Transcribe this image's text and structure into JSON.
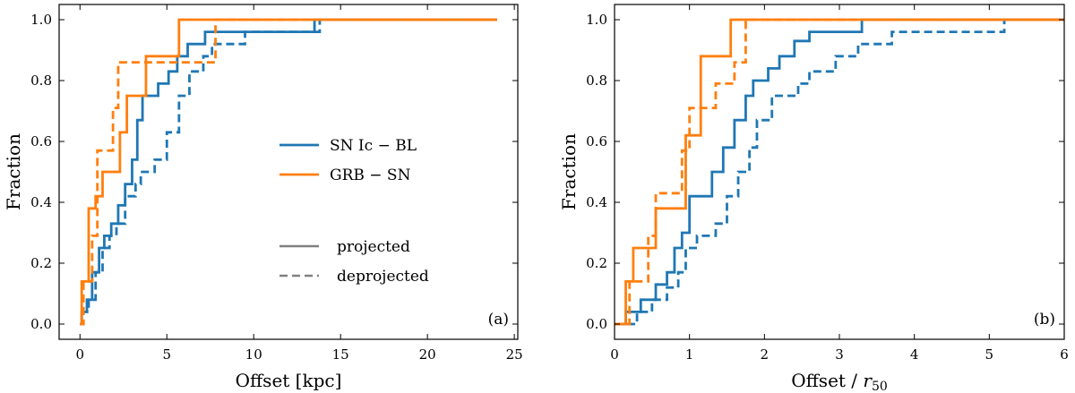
{
  "colors": {
    "sn": "#1f77b4",
    "grb": "#ff7f0e",
    "legend_gray": "#808080"
  },
  "legend": {
    "series": [
      "SN Ic − BL",
      "GRB − SN"
    ],
    "styles": [
      "projected",
      "deprojected"
    ]
  },
  "chart_data": [
    {
      "type": "line",
      "step": "post",
      "panel_label": "(a)",
      "xlabel": "Offset [kpc]",
      "ylabel": "Fraction",
      "xlim": [
        -1.2,
        25.2
      ],
      "ylim": [
        -0.05,
        1.05
      ],
      "xticks": [
        0,
        5,
        10,
        15,
        20,
        25
      ],
      "yticks": [
        0.0,
        0.2,
        0.4,
        0.6,
        0.8,
        1.0
      ],
      "xtick_labels": [
        "0",
        "5",
        "10",
        "15",
        "20",
        "25"
      ],
      "ytick_labels": [
        "0.0",
        "0.2",
        "0.4",
        "0.6",
        "0.8",
        "1.0"
      ],
      "x_end": 24,
      "series": [
        {
          "name": "SN Ic − BL",
          "color": "sn",
          "dash": "projected",
          "x": [
            0.1,
            0.4,
            0.7,
            1.1,
            1.4,
            1.8,
            2.2,
            2.6,
            3.0,
            3.3,
            3.6,
            4.5,
            5.1,
            5.6,
            6.2,
            7.2,
            8.5,
            13.5
          ],
          "y": [
            0.04,
            0.08,
            0.17,
            0.25,
            0.29,
            0.33,
            0.39,
            0.46,
            0.54,
            0.67,
            0.75,
            0.79,
            0.83,
            0.88,
            0.92,
            0.96,
            0.96,
            1.0
          ]
        },
        {
          "name": "SN Ic − BL",
          "color": "sn",
          "dash": "deprojected",
          "x": [
            0.2,
            0.5,
            0.9,
            1.3,
            1.7,
            2.1,
            2.6,
            3.2,
            3.5,
            4.3,
            5.0,
            5.7,
            6.3,
            7.1,
            7.6,
            9.5,
            13.8
          ],
          "y": [
            0.04,
            0.08,
            0.17,
            0.25,
            0.29,
            0.33,
            0.42,
            0.46,
            0.5,
            0.54,
            0.63,
            0.75,
            0.83,
            0.88,
            0.92,
            0.96,
            1.0
          ]
        },
        {
          "name": "GRB − SN",
          "color": "grb",
          "dash": "projected",
          "x": [
            0.1,
            0.5,
            0.9,
            1.3,
            2.3,
            2.7,
            3.8,
            5.7
          ],
          "y": [
            0.14,
            0.38,
            0.42,
            0.5,
            0.63,
            0.75,
            0.88,
            1.0
          ]
        },
        {
          "name": "GRB − SN",
          "color": "grb",
          "dash": "deprojected",
          "x": [
            0.2,
            0.7,
            1.0,
            1.9,
            2.2,
            2.6,
            4.0,
            7.8
          ],
          "y": [
            0.14,
            0.29,
            0.57,
            0.71,
            0.86,
            0.86,
            0.86,
            1.0
          ]
        }
      ]
    },
    {
      "type": "line",
      "step": "post",
      "panel_label": "(b)",
      "xlabel": "Offset / r50",
      "ylabel": "Fraction",
      "xlim": [
        0,
        6
      ],
      "ylim": [
        -0.05,
        1.05
      ],
      "xticks": [
        0,
        1,
        2,
        3,
        4,
        5,
        6
      ],
      "yticks": [
        0.0,
        0.2,
        0.4,
        0.6,
        0.8,
        1.0
      ],
      "xtick_labels": [
        "0",
        "1",
        "2",
        "3",
        "4",
        "5",
        "6"
      ],
      "ytick_labels": [
        "0.0",
        "0.2",
        "0.4",
        "0.6",
        "0.8",
        "1.0"
      ],
      "x_end": 6,
      "series": [
        {
          "name": "SN Ic − BL",
          "color": "sn",
          "dash": "projected",
          "x": [
            0.15,
            0.35,
            0.55,
            0.7,
            0.8,
            0.9,
            1.0,
            1.3,
            1.45,
            1.6,
            1.75,
            1.85,
            2.05,
            2.2,
            2.4,
            2.6,
            2.8,
            3.3
          ],
          "y": [
            0.04,
            0.08,
            0.13,
            0.17,
            0.25,
            0.3,
            0.42,
            0.5,
            0.58,
            0.67,
            0.75,
            0.8,
            0.84,
            0.88,
            0.93,
            0.96,
            0.96,
            1.0
          ]
        },
        {
          "name": "SN Ic − BL",
          "color": "sn",
          "dash": "deprojected",
          "x": [
            0.3,
            0.5,
            0.7,
            0.85,
            0.95,
            1.1,
            1.35,
            1.5,
            1.65,
            1.8,
            1.9,
            2.1,
            2.45,
            2.6,
            2.95,
            3.25,
            3.7,
            5.2
          ],
          "y": [
            0.04,
            0.08,
            0.12,
            0.17,
            0.25,
            0.29,
            0.33,
            0.42,
            0.5,
            0.58,
            0.67,
            0.75,
            0.79,
            0.83,
            0.88,
            0.92,
            0.96,
            1.0
          ]
        },
        {
          "name": "GRB − SN",
          "color": "grb",
          "dash": "projected",
          "x": [
            0.15,
            0.25,
            0.55,
            0.95,
            1.15,
            1.55
          ],
          "y": [
            0.14,
            0.25,
            0.38,
            0.62,
            0.88,
            1.0
          ]
        },
        {
          "name": "GRB − SN",
          "color": "grb",
          "dash": "deprojected",
          "x": [
            0.2,
            0.45,
            0.55,
            0.9,
            1.0,
            1.35,
            1.6,
            1.75
          ],
          "y": [
            0.14,
            0.29,
            0.43,
            0.57,
            0.71,
            0.79,
            0.86,
            1.0
          ]
        }
      ]
    }
  ]
}
